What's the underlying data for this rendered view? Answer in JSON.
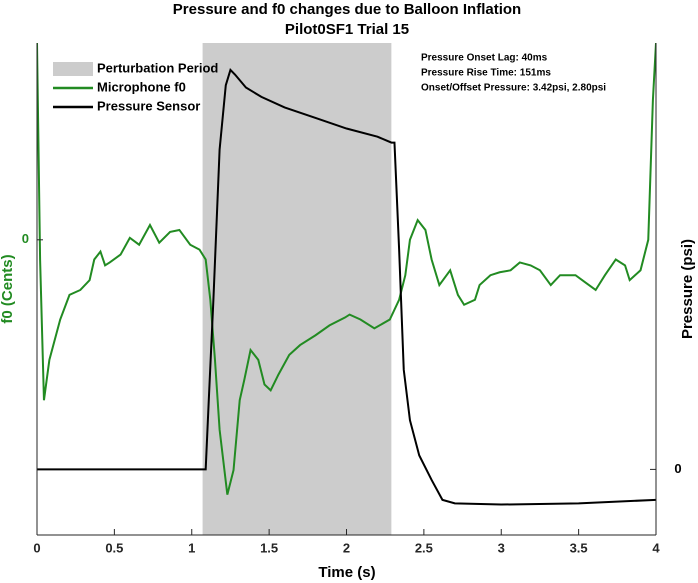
{
  "chart_data": {
    "type": "line",
    "title": "Pressure and f0 changes due to Balloon Inflation",
    "subtitle": "Pilot0SF1 Trial 15",
    "xlabel": "Time (s)",
    "ylabel": "f0 (Cents)",
    "y2label": "Pressure (psi)",
    "xlim": [
      0,
      4
    ],
    "xticks": [
      0,
      0.5,
      1,
      1.5,
      2,
      2.5,
      3,
      3.5,
      4
    ],
    "ylim": [
      -300,
      200
    ],
    "yticks": [
      0
    ],
    "y2lim": [
      -0.56,
      3.64
    ],
    "y2ticks": [
      0
    ],
    "ycolor": "#228b22",
    "legend": "upper left",
    "perturbation": {
      "name": "Perturbation Period",
      "color": "#cccccc",
      "range": [
        1.07,
        2.29
      ]
    },
    "annotations": [
      "Pressure Onset Lag: 40ms",
      "Pressure Rise Time: 151ms",
      "Onset/Offset Pressure: 3.42psi, 2.80psi"
    ],
    "series": [
      {
        "name": "Microphone f0",
        "color": "#228b22",
        "axis": "y",
        "x": [
          0,
          0.02,
          0.045,
          0.08,
          0.15,
          0.21,
          0.28,
          0.34,
          0.37,
          0.41,
          0.44,
          0.47,
          0.54,
          0.6,
          0.66,
          0.73,
          0.79,
          0.86,
          0.92,
          0.99,
          1.05,
          1.09,
          1.12,
          1.15,
          1.18,
          1.23,
          1.27,
          1.31,
          1.34,
          1.38,
          1.43,
          1.47,
          1.51,
          1.56,
          1.63,
          1.7,
          1.8,
          1.89,
          1.99,
          2.02,
          2.09,
          2.18,
          2.28,
          2.34,
          2.38,
          2.41,
          2.46,
          2.51,
          2.55,
          2.6,
          2.67,
          2.72,
          2.76,
          2.83,
          2.86,
          2.93,
          2.99,
          3.06,
          3.12,
          3.19,
          3.25,
          3.32,
          3.38,
          3.48,
          3.54,
          3.61,
          3.67,
          3.74,
          3.8,
          3.83,
          3.9,
          3.95,
          3.98,
          4
        ],
        "values": [
          200,
          -20,
          -163,
          -122,
          -81,
          -56,
          -51,
          -41,
          -20,
          -12,
          -26,
          -23,
          -15,
          2,
          -5,
          15,
          -3,
          8,
          10,
          -5,
          -10,
          -20,
          -61,
          -122,
          -193,
          -259,
          -234,
          -163,
          -142,
          -112,
          -122,
          -147,
          -153,
          -137,
          -117,
          -107,
          -97,
          -87,
          -79,
          -76,
          -81,
          -90,
          -81,
          -61,
          -36,
          0,
          20,
          10,
          -20,
          -46,
          -31,
          -56,
          -66,
          -61,
          -46,
          -36,
          -33,
          -31,
          -23,
          -26,
          -31,
          -46,
          -36,
          -36,
          -43,
          -51,
          -36,
          -20,
          -26,
          -41,
          -31,
          0,
          142,
          200
        ]
      },
      {
        "name": "Pressure Sensor",
        "color": "#000000",
        "axis": "y2",
        "x": [
          0,
          1.0,
          1.09,
          1.11,
          1.14,
          1.18,
          1.22,
          1.25,
          1.28,
          1.35,
          1.45,
          1.6,
          1.8,
          2.0,
          2.2,
          2.29,
          2.31,
          2.34,
          2.37,
          2.41,
          2.47,
          2.55,
          2.62,
          2.7,
          3.0,
          3.5,
          4.0
        ],
        "values": [
          0,
          0,
          0,
          0.59,
          1.45,
          2.73,
          3.28,
          3.41,
          3.37,
          3.26,
          3.18,
          3.09,
          3.0,
          2.91,
          2.84,
          2.79,
          2.79,
          1.88,
          0.85,
          0.42,
          0.12,
          -0.09,
          -0.26,
          -0.29,
          -0.3,
          -0.29,
          -0.26
        ]
      }
    ]
  }
}
